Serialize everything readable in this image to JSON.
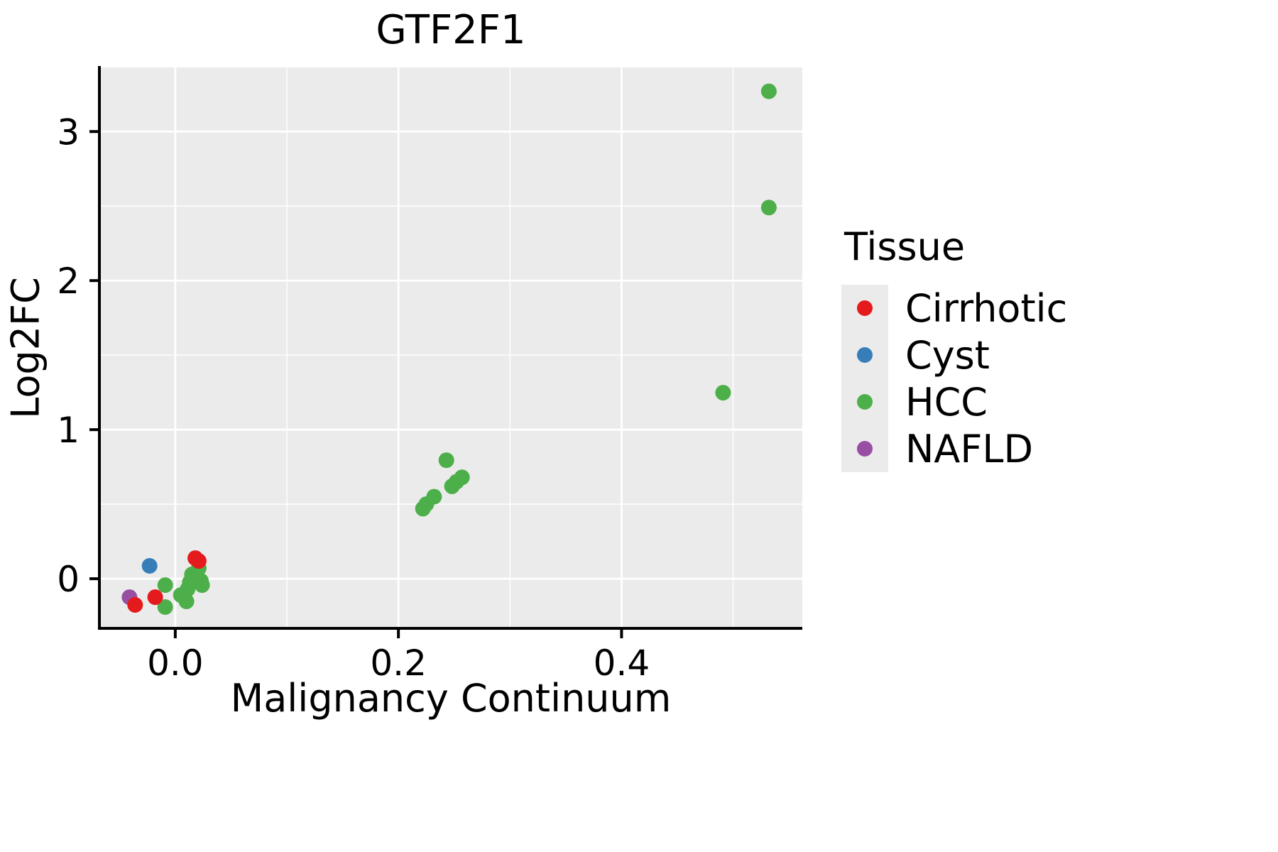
{
  "chart_data": {
    "type": "scatter",
    "title": "GTF2F1",
    "xlabel": "Malignancy Continuum",
    "ylabel": "Log2FC",
    "legend_title": "Tissue",
    "legend_position": "right",
    "panel_bg": "#EBEBEB",
    "grid_color": "#FFFFFF",
    "axis_color": "#000000",
    "xlim": [
      -0.068,
      0.562
    ],
    "ylim": [
      -0.333,
      3.43
    ],
    "x_ticks": [
      {
        "value": 0.0,
        "label": "0.0"
      },
      {
        "value": 0.2,
        "label": "0.2"
      },
      {
        "value": 0.4,
        "label": "0.4"
      }
    ],
    "y_ticks": [
      {
        "value": 0,
        "label": "0"
      },
      {
        "value": 1,
        "label": "1"
      },
      {
        "value": 2,
        "label": "2"
      },
      {
        "value": 3,
        "label": "3"
      }
    ],
    "x_minor": [
      0.1,
      0.3,
      0.5
    ],
    "y_minor": [
      0.5,
      1.5,
      2.5
    ],
    "point_radius": 11,
    "draw_order": [
      2,
      3,
      1,
      0
    ],
    "series": [
      {
        "name": "Cirrhotic",
        "color": "#E41A1C",
        "points": [
          [
            -0.036,
            -0.176
          ],
          [
            -0.018,
            -0.124
          ],
          [
            0.018,
            0.138
          ],
          [
            0.021,
            0.119
          ]
        ]
      },
      {
        "name": "Cyst",
        "color": "#377EB8",
        "points": [
          [
            -0.023,
            0.086
          ]
        ]
      },
      {
        "name": "HCC",
        "color": "#4DAF4A",
        "points": [
          [
            -0.009,
            -0.043
          ],
          [
            -0.009,
            -0.19
          ],
          [
            0.005,
            -0.11
          ],
          [
            0.01,
            -0.152
          ],
          [
            0.011,
            -0.071
          ],
          [
            0.013,
            -0.024
          ],
          [
            0.015,
            0.029
          ],
          [
            0.021,
            0.071
          ],
          [
            0.023,
            -0.014
          ],
          [
            0.024,
            -0.043
          ],
          [
            0.222,
            0.47
          ],
          [
            0.225,
            0.5
          ],
          [
            0.232,
            0.55
          ],
          [
            0.243,
            0.795
          ],
          [
            0.248,
            0.62
          ],
          [
            0.252,
            0.65
          ],
          [
            0.257,
            0.68
          ],
          [
            0.491,
            1.248
          ],
          [
            0.532,
            2.49
          ],
          [
            0.532,
            3.27
          ]
        ]
      },
      {
        "name": "NAFLD",
        "color": "#984EA3",
        "points": [
          [
            -0.041,
            -0.124
          ]
        ]
      }
    ]
  }
}
